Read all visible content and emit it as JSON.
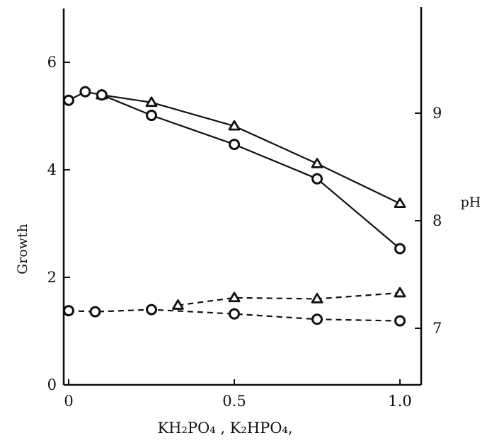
{
  "chart_data": {
    "type": "line",
    "title": "",
    "xlabel": "KH₂PO₄ , K₂HPO₄,",
    "ylabel_left": "Growth",
    "ylabel_right": "pH",
    "xlim": [
      0,
      1.1
    ],
    "ylim_left": [
      0,
      7
    ],
    "ylim_right": [
      6.5,
      9.95
    ],
    "x_ticks": [
      {
        "value": 0,
        "label": "0"
      },
      {
        "value": 0.5,
        "label": "0.5"
      },
      {
        "value": 1.0,
        "label": "1.0"
      }
    ],
    "y_left_ticks": [
      {
        "value": 0,
        "label": "0"
      },
      {
        "value": 2,
        "label": "2"
      },
      {
        "value": 4,
        "label": "4"
      },
      {
        "value": 6,
        "label": "6"
      }
    ],
    "y_right_ticks": [
      {
        "value": 7,
        "label": "7"
      },
      {
        "value": 8,
        "label": "8"
      },
      {
        "value": 9,
        "label": "9"
      }
    ],
    "grid": false,
    "legend": "none",
    "series": [
      {
        "axis": "right",
        "marker": "triangle",
        "line": "solid",
        "x": [
          0.1,
          0.25,
          0.5,
          0.75,
          1.0
        ],
        "y": [
          9.17,
          9.1,
          8.88,
          8.53,
          8.16
        ]
      },
      {
        "axis": "right",
        "marker": "circle",
        "line": "solid",
        "x": [
          0,
          0.05,
          0.1,
          0.25,
          0.5,
          0.75,
          1.0
        ],
        "y": [
          9.12,
          9.2,
          9.17,
          8.98,
          8.71,
          8.39,
          7.74
        ]
      },
      {
        "axis": "left",
        "marker": "triangle",
        "line": "dashed",
        "x": [
          0.33,
          0.5,
          0.75,
          1.0
        ],
        "y": [
          1.48,
          1.62,
          1.6,
          1.71
        ]
      },
      {
        "axis": "left",
        "marker": "circle",
        "line": "dashed",
        "x": [
          0,
          0.08,
          0.25,
          0.5,
          0.75,
          1.0
        ],
        "y": [
          1.38,
          1.36,
          1.4,
          1.32,
          1.22,
          1.19
        ]
      }
    ]
  }
}
